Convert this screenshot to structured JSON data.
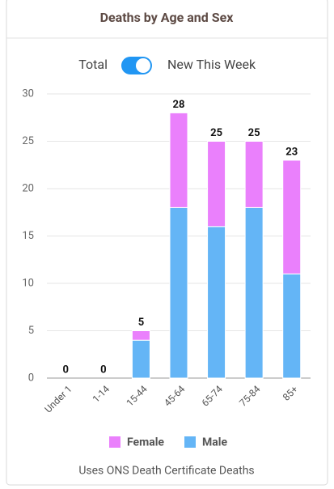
{
  "toggle": {
    "left": "Total",
    "right": "New This Week"
  },
  "footer": "Uses ONS Death Certificate Deaths",
  "chart_data": {
    "type": "stacked-bar",
    "title": "Deaths by Age and Sex",
    "categories": [
      "Under 1",
      "1-14",
      "15-44",
      "45-64",
      "65-74",
      "75-84",
      "85+"
    ],
    "series": [
      {
        "name": "Male",
        "color": "#64b5f6",
        "values": [
          0,
          0,
          4,
          18,
          16,
          18,
          11
        ]
      },
      {
        "name": "Female",
        "color": "#ea80fc",
        "values": [
          0,
          0,
          1,
          10,
          9,
          7,
          12
        ]
      }
    ],
    "totals": [
      0,
      0,
      5,
      28,
      25,
      25,
      23
    ],
    "legend_order": [
      1,
      0
    ],
    "ylim": [
      0,
      30
    ],
    "yticks": [
      0,
      5,
      10,
      15,
      20,
      25,
      30
    ],
    "grid": true
  }
}
